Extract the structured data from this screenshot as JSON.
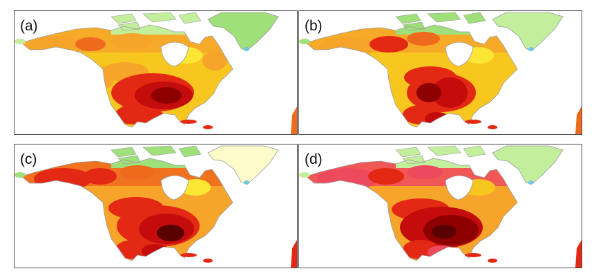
{
  "panels": [
    {
      "label": "(a)",
      "variant": "a"
    },
    {
      "label": "(b)",
      "variant": "b"
    },
    {
      "label": "(c)",
      "variant": "c"
    },
    {
      "label": "(d)",
      "variant": "d"
    }
  ],
  "palette": {
    "cream": "#fdfbc9",
    "light_green": "#c3ef9c",
    "green": "#9fe07a",
    "yellow": "#fbe733",
    "gold": "#f8c71f",
    "orange": "#f6a42a",
    "dark_orange": "#ee6a1c",
    "red": "#e32914",
    "crimson": "#c40c0c",
    "dark_red": "#8e0000",
    "darkest": "#5a0000",
    "pink": "#ee4a5e",
    "coastline": "#9a9a9a",
    "ocean": "#ffffff"
  }
}
